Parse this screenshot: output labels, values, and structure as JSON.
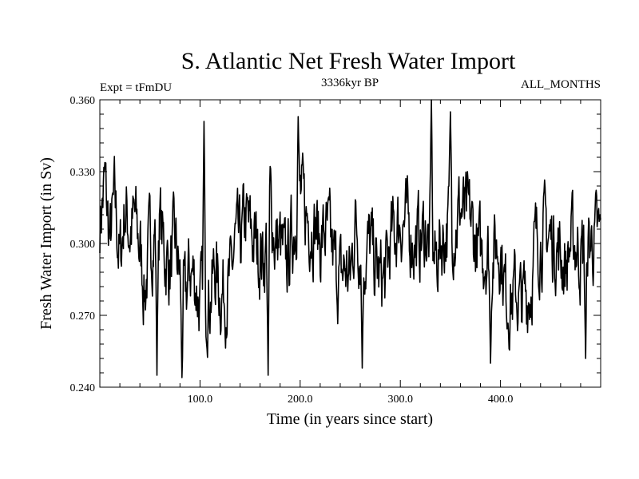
{
  "chart_data": {
    "type": "line",
    "title": "S. Atlantic Net Fresh Water Import",
    "subtitle": "3336kyr BP",
    "left_label": "Expt = tFmDU",
    "right_label": "ALL_MONTHS",
    "xlabel": "Time (in years since start)",
    "ylabel": "Fresh Water Import (in Sv)",
    "xlim": [
      0,
      500
    ],
    "ylim": [
      0.24,
      0.36
    ],
    "x_ticks": [
      100,
      200,
      300,
      400
    ],
    "x_tick_labels": [
      "100.0",
      "200.0",
      "300.0",
      "400.0"
    ],
    "y_ticks": [
      0.24,
      0.27,
      0.3,
      0.33,
      0.36
    ],
    "y_tick_labels": [
      "0.240",
      "0.270",
      "0.300",
      "0.330",
      "0.360"
    ],
    "line_color": "#000000",
    "series": [
      {
        "name": "Fresh Water Import",
        "x_start": 0,
        "x_step": 5,
        "values": [
          0.31,
          0.325,
          0.3,
          0.318,
          0.292,
          0.315,
          0.305,
          0.31,
          0.298,
          0.28,
          0.3,
          0.305,
          0.31,
          0.295,
          0.29,
          0.3,
          0.285,
          0.275,
          0.29,
          0.285,
          0.275,
          0.28,
          0.278,
          0.29,
          0.28,
          0.28,
          0.282,
          0.3,
          0.298,
          0.31,
          0.305,
          0.3,
          0.296,
          0.295,
          0.32,
          0.3,
          0.3,
          0.29,
          0.298,
          0.31,
          0.32,
          0.312,
          0.31,
          0.308,
          0.3,
          0.305,
          0.3,
          0.29,
          0.285,
          0.29,
          0.285,
          0.31,
          0.3,
          0.295,
          0.3,
          0.29,
          0.285,
          0.285,
          0.3,
          0.305,
          0.31,
          0.308,
          0.305,
          0.3,
          0.302,
          0.305,
          0.298,
          0.292,
          0.3,
          0.305,
          0.31,
          0.308,
          0.315,
          0.31,
          0.31,
          0.3,
          0.295,
          0.298,
          0.295,
          0.298,
          0.3,
          0.28,
          0.276,
          0.28,
          0.275,
          0.278,
          0.282,
          0.3,
          0.302,
          0.305,
          0.302,
          0.3,
          0.295,
          0.29,
          0.3,
          0.3,
          0.295,
          0.298,
          0.3,
          0.302
        ]
      }
    ],
    "extremes": [
      {
        "x": 331,
        "y": 0.36
      },
      {
        "x": 82,
        "y": 0.244
      },
      {
        "x": 57,
        "y": 0.245
      },
      {
        "x": 168,
        "y": 0.245
      },
      {
        "x": 262,
        "y": 0.248
      },
      {
        "x": 104,
        "y": 0.351
      },
      {
        "x": 198,
        "y": 0.353
      },
      {
        "x": 350,
        "y": 0.355
      },
      {
        "x": 390,
        "y": 0.25
      },
      {
        "x": 485,
        "y": 0.252
      }
    ]
  }
}
